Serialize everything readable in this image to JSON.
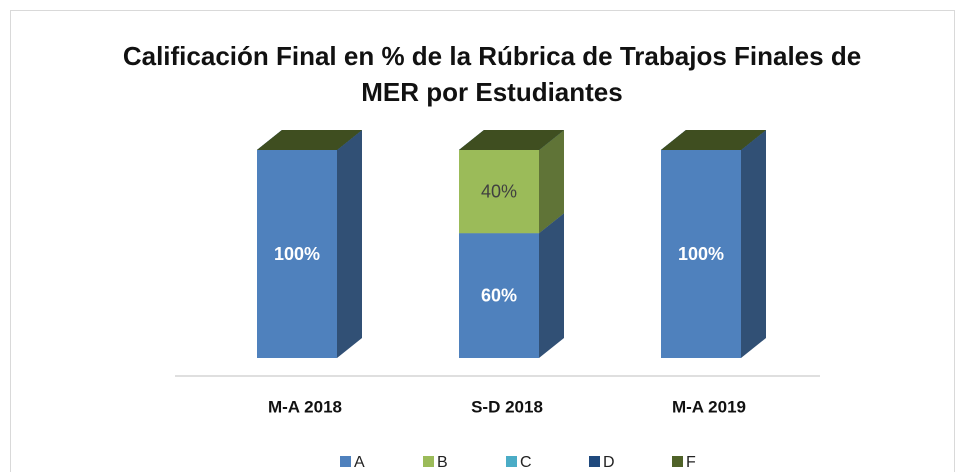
{
  "chart_data": {
    "type": "bar3d_stacked",
    "title": "Calificación Final en % de la Rúbrica de Trabajos Finales de MER por Estudiantes",
    "categories": [
      "M-A 2018",
      "S-D 2018",
      "M-A 2019"
    ],
    "series": [
      {
        "name": "A",
        "color": "#4f81bd",
        "values": [
          100,
          60,
          100
        ],
        "value_labels": [
          "100%",
          "60%",
          "100%"
        ]
      },
      {
        "name": "B",
        "color": "#9bbb59",
        "values": [
          0,
          40,
          0
        ],
        "value_labels": [
          null,
          "40%",
          null
        ]
      },
      {
        "name": "C",
        "color": "#4bacc6",
        "values": [
          0,
          0,
          0
        ]
      },
      {
        "name": "D",
        "color": "#1f497d",
        "values": [
          0,
          0,
          0
        ]
      },
      {
        "name": "F",
        "color": "#4f6228",
        "values": [
          0,
          0,
          0
        ]
      }
    ],
    "legend": "bottom"
  }
}
